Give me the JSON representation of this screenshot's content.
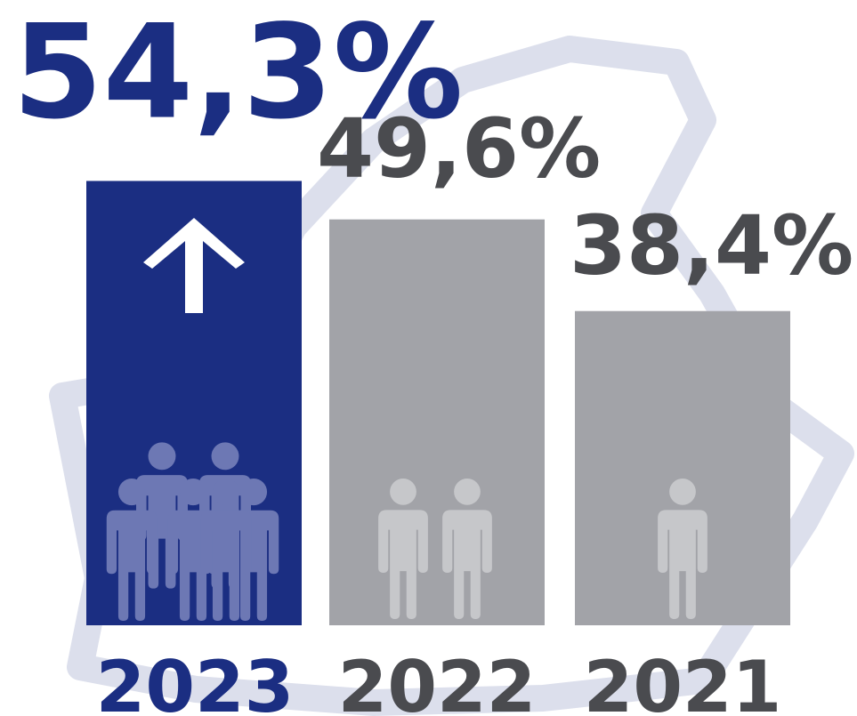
{
  "chart_data": {
    "type": "bar",
    "categories": [
      "2023",
      "2022",
      "2021"
    ],
    "values": [
      54.3,
      49.6,
      38.4
    ],
    "value_labels": [
      "54,3%",
      "49,6%",
      "38,4%"
    ],
    "ylim": [
      0,
      60
    ],
    "grid": false,
    "legend": "none",
    "highlight_category": "2023",
    "people_icons": [
      6,
      2,
      1
    ]
  },
  "colors": {
    "highlight_bar": "#1b2e82",
    "highlight_text": "#1b2e82",
    "bar": "#a2a3a8",
    "bar_text": "#4a4b4f",
    "person_on_highlight": "#6d78b4",
    "person_on_bar": "#c6c7ca",
    "arrow": "#ffffff",
    "background_outline": "#dcdfec"
  },
  "icons": {
    "trend": "up-arrow-icon",
    "people": "person-icon",
    "background": "region-map-outline"
  }
}
